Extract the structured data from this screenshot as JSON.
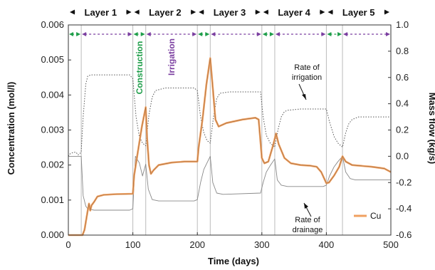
{
  "chart_data": {
    "type": "line",
    "x_axis": {
      "label": "Time (days)",
      "range": [
        0,
        500
      ],
      "ticks": [
        "0",
        "100",
        "200",
        "300",
        "400",
        "500"
      ]
    },
    "y_left": {
      "label": "Concentration (mol/l)",
      "range": [
        0,
        0.006
      ],
      "ticks": [
        "0.000",
        "0.001",
        "0.002",
        "0.003",
        "0.004",
        "0.005",
        "0.006"
      ]
    },
    "y_right": {
      "label": "Mass flow (kg/s)",
      "range": [
        -0.6,
        1.0
      ],
      "ticks": [
        "-0.6",
        "-0.4",
        "-0.2",
        "0.0",
        "0.2",
        "0.4",
        "0.6",
        "0.8",
        "1.0"
      ]
    },
    "layers": [
      {
        "label": "Layer 1",
        "start": 0,
        "end": 100
      },
      {
        "label": "Layer 2",
        "start": 100,
        "end": 200
      },
      {
        "label": "Layer 3",
        "start": 200,
        "end": 300
      },
      {
        "label": "Layer 4",
        "start": 300,
        "end": 400
      },
      {
        "label": "Layer 5",
        "start": 400,
        "end": 500
      }
    ],
    "phase_labels": {
      "construction": "Construction",
      "irrigation": "Irrigation"
    },
    "phase_colors": {
      "construction": "#1f9e4a",
      "irrigation": "#7b3fa0"
    },
    "phase_segments": [
      {
        "type": "construction",
        "start": 0,
        "end": 20
      },
      {
        "type": "irrigation",
        "start": 20,
        "end": 100
      },
      {
        "type": "construction",
        "start": 100,
        "end": 120
      },
      {
        "type": "irrigation",
        "start": 120,
        "end": 200
      },
      {
        "type": "construction",
        "start": 200,
        "end": 220
      },
      {
        "type": "irrigation",
        "start": 220,
        "end": 300
      },
      {
        "type": "construction",
        "start": 300,
        "end": 320
      },
      {
        "type": "irrigation",
        "start": 320,
        "end": 400
      },
      {
        "type": "construction",
        "start": 400,
        "end": 425
      },
      {
        "type": "irrigation",
        "start": 425,
        "end": 500
      }
    ],
    "vertical_lines": [
      20,
      100,
      120,
      200,
      220,
      300,
      320,
      400,
      425
    ],
    "series": [
      {
        "name": "Cu",
        "axis": "left",
        "color": "#f0a060",
        "style": "solid",
        "points": [
          [
            0,
            0
          ],
          [
            20,
            0
          ],
          [
            22,
            0
          ],
          [
            25,
            0.00015
          ],
          [
            30,
            0.0007
          ],
          [
            32,
            0.0009
          ],
          [
            34,
            0.0007
          ],
          [
            36,
            0.00085
          ],
          [
            40,
            0.00095
          ],
          [
            45,
            0.0011
          ],
          [
            55,
            0.00115
          ],
          [
            75,
            0.00117
          ],
          [
            100,
            0.00118
          ],
          [
            102,
            0.0017
          ],
          [
            108,
            0.0024
          ],
          [
            114,
            0.0031
          ],
          [
            120,
            0.00365
          ],
          [
            122,
            0.0028
          ],
          [
            125,
            0.002
          ],
          [
            128,
            0.00175
          ],
          [
            132,
            0.00185
          ],
          [
            140,
            0.002
          ],
          [
            160,
            0.00207
          ],
          [
            180,
            0.0021
          ],
          [
            200,
            0.0021
          ],
          [
            202,
            0.0025
          ],
          [
            208,
            0.0033
          ],
          [
            214,
            0.0043
          ],
          [
            220,
            0.00505
          ],
          [
            224,
            0.0042
          ],
          [
            228,
            0.0033
          ],
          [
            233,
            0.0031
          ],
          [
            245,
            0.0032
          ],
          [
            270,
            0.0033
          ],
          [
            290,
            0.00335
          ],
          [
            295,
            0.0033
          ],
          [
            300,
            0.0022
          ],
          [
            304,
            0.00205
          ],
          [
            310,
            0.0021
          ],
          [
            318,
            0.0026
          ],
          [
            322,
            0.0029
          ],
          [
            326,
            0.0026
          ],
          [
            335,
            0.0022
          ],
          [
            345,
            0.00205
          ],
          [
            360,
            0.002
          ],
          [
            375,
            0.00198
          ],
          [
            385,
            0.00195
          ],
          [
            392,
            0.0018
          ],
          [
            400,
            0.00148
          ],
          [
            404,
            0.0015
          ],
          [
            412,
            0.0017
          ],
          [
            420,
            0.00195
          ],
          [
            425,
            0.00225
          ],
          [
            430,
            0.0021
          ],
          [
            440,
            0.002
          ],
          [
            470,
            0.00195
          ],
          [
            490,
            0.0019
          ],
          [
            500,
            0.0018
          ]
        ]
      },
      {
        "name": "Rate of irrigation",
        "axis": "right",
        "color": "#555555",
        "style": "dotted",
        "points": [
          [
            0,
            0.0
          ],
          [
            3,
            0.02
          ],
          [
            8,
            0.03
          ],
          [
            12,
            0.03
          ],
          [
            15,
            0.01
          ],
          [
            18,
            0.02
          ],
          [
            20,
            0.04
          ],
          [
            23,
            0.3
          ],
          [
            27,
            0.55
          ],
          [
            30,
            0.61
          ],
          [
            35,
            0.62
          ],
          [
            60,
            0.62
          ],
          [
            95,
            0.62
          ],
          [
            100,
            0.59
          ],
          [
            105,
            0.3
          ],
          [
            110,
            0.15
          ],
          [
            115,
            0.1
          ],
          [
            120,
            0.08
          ],
          [
            125,
            0.32
          ],
          [
            130,
            0.45
          ],
          [
            135,
            0.5
          ],
          [
            150,
            0.52
          ],
          [
            170,
            0.52
          ],
          [
            195,
            0.52
          ],
          [
            200,
            0.5
          ],
          [
            205,
            0.3
          ],
          [
            210,
            0.18
          ],
          [
            215,
            0.12
          ],
          [
            220,
            0.1
          ],
          [
            225,
            0.3
          ],
          [
            230,
            0.44
          ],
          [
            235,
            0.48
          ],
          [
            250,
            0.49
          ],
          [
            298,
            0.49
          ],
          [
            302,
            0.3
          ],
          [
            307,
            0.16
          ],
          [
            313,
            0.1
          ],
          [
            320,
            0.07
          ],
          [
            325,
            0.2
          ],
          [
            330,
            0.3
          ],
          [
            335,
            0.34
          ],
          [
            340,
            0.35
          ],
          [
            360,
            0.36
          ],
          [
            400,
            0.36
          ],
          [
            405,
            0.26
          ],
          [
            412,
            0.15
          ],
          [
            418,
            0.1
          ],
          [
            425,
            0.07
          ],
          [
            430,
            0.18
          ],
          [
            435,
            0.25
          ],
          [
            440,
            0.28
          ],
          [
            450,
            0.3
          ],
          [
            480,
            0.3
          ],
          [
            500,
            0.3
          ]
        ]
      },
      {
        "name": "Rate of drainage",
        "axis": "right",
        "color": "#888888",
        "style": "solid",
        "points": [
          [
            0,
            0.0
          ],
          [
            3,
            0.0
          ],
          [
            8,
            0.0
          ],
          [
            12,
            0.0
          ],
          [
            15,
            0.0
          ],
          [
            20,
            0.0
          ],
          [
            23,
            -0.3
          ],
          [
            27,
            -0.38
          ],
          [
            30,
            -0.4
          ],
          [
            40,
            -0.41
          ],
          [
            95,
            -0.41
          ],
          [
            100,
            -0.4
          ],
          [
            104,
            0.0
          ],
          [
            110,
            -0.05
          ],
          [
            115,
            -0.15
          ],
          [
            120,
            -0.06
          ],
          [
            124,
            -0.25
          ],
          [
            130,
            -0.33
          ],
          [
            140,
            -0.34
          ],
          [
            195,
            -0.34
          ],
          [
            200,
            -0.33
          ],
          [
            205,
            -0.2
          ],
          [
            210,
            -0.1
          ],
          [
            215,
            -0.05
          ],
          [
            220,
            0.0
          ],
          [
            224,
            -0.2
          ],
          [
            230,
            -0.28
          ],
          [
            240,
            -0.29
          ],
          [
            298,
            -0.28
          ],
          [
            302,
            -0.2
          ],
          [
            307,
            -0.12
          ],
          [
            313,
            -0.07
          ],
          [
            320,
            -0.02
          ],
          [
            324,
            -0.18
          ],
          [
            330,
            -0.22
          ],
          [
            340,
            -0.23
          ],
          [
            395,
            -0.23
          ],
          [
            400,
            -0.22
          ],
          [
            405,
            -0.15
          ],
          [
            412,
            -0.08
          ],
          [
            418,
            -0.04
          ],
          [
            425,
            0.0
          ],
          [
            430,
            -0.12
          ],
          [
            437,
            -0.17
          ],
          [
            445,
            -0.18
          ],
          [
            500,
            -0.18
          ]
        ]
      }
    ],
    "annotations": [
      {
        "lines": [
          "Rate of",
          "irrigation"
        ]
      },
      {
        "lines": [
          "Rate of",
          "drainage"
        ]
      }
    ],
    "legend": {
      "label": "Cu",
      "position": "bottom-right"
    }
  }
}
